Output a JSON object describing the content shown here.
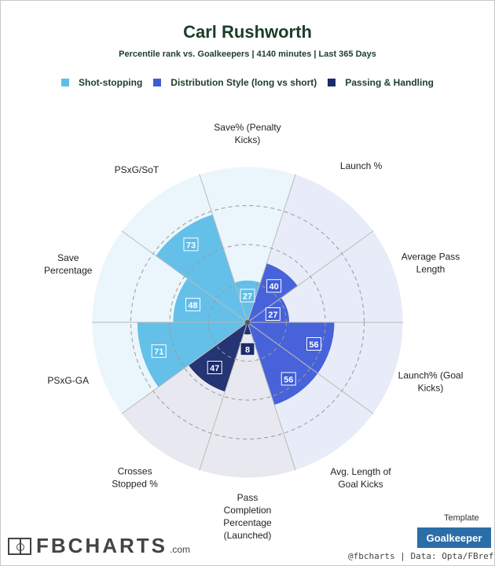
{
  "title": "Carl Rushworth",
  "subtitle": "Percentile rank vs. Goalkeepers | 4140 minutes | Last 365 Days",
  "legend": [
    {
      "label": "Shot-stopping",
      "color": "#5dbde8"
    },
    {
      "label": "Distribution Style (long vs short)",
      "color": "#3f5cd8"
    },
    {
      "label": "Passing & Handling",
      "color": "#1a2a6c"
    }
  ],
  "template_label": "Template",
  "template_value": "Goalkeeper",
  "credit": "@fbcharts | Data: Opta/FBref",
  "logo": {
    "name": "FBCHARTS",
    "suffix": ".com"
  },
  "chart_data": {
    "type": "polar-bar",
    "scale_max": 100,
    "grid_rings": [
      25,
      50,
      75
    ],
    "categories": [
      {
        "label": "Save% (Penalty Kicks)",
        "value": 27,
        "group": "Shot-stopping"
      },
      {
        "label": "Launch %",
        "value": 40,
        "group": "Distribution Style (long vs short)"
      },
      {
        "label": "Average Pass Length",
        "value": 27,
        "group": "Distribution Style (long vs short)"
      },
      {
        "label": "Launch% (Goal Kicks)",
        "value": 56,
        "group": "Distribution Style (long vs short)"
      },
      {
        "label": "Avg. Length of Goal Kicks",
        "value": 56,
        "group": "Distribution Style (long vs short)"
      },
      {
        "label": "Pass Completion Percentage (Launched)",
        "value": 8,
        "group": "Passing & Handling"
      },
      {
        "label": "Crosses Stopped %",
        "value": 47,
        "group": "Passing & Handling"
      },
      {
        "label": "PSxG-GA",
        "value": 71,
        "group": "Shot-stopping"
      },
      {
        "label": "Save Percentage",
        "value": 48,
        "group": "Shot-stopping"
      },
      {
        "label": "PSxG/SoT",
        "value": 73,
        "group": "Shot-stopping"
      }
    ],
    "background_colors": {
      "Shot-stopping": "#eaf6fb",
      "Distribution Style (long vs short)": "#e8ebf8",
      "Passing & Handling": "#e8e8f0"
    },
    "bar_colors": {
      "Shot-stopping": "#5dbde8",
      "Distribution Style (long vs short)": "#3f5cd8",
      "Passing & Handling": "#1a2a6c"
    }
  }
}
